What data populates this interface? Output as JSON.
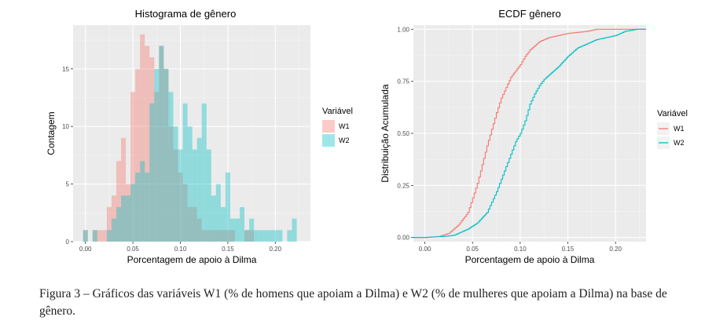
{
  "chart_data": [
    {
      "type": "bar",
      "title": "Histograma de gênero",
      "xlabel": "Porcentagem de apoio à Dilma",
      "ylabel": "Contagem",
      "xlim": [
        -0.013,
        0.237
      ],
      "ylim": [
        0,
        18.8
      ],
      "xticks": [
        0.0,
        0.05,
        0.1,
        0.15,
        0.2
      ],
      "xtick_labels": [
        "0.00",
        "0.05",
        "0.10",
        "0.15",
        "0.20"
      ],
      "yticks": [
        0,
        5,
        10,
        15
      ],
      "ytick_labels": [
        "0",
        "5",
        "10",
        "15"
      ],
      "bin_width": 0.005,
      "legend": {
        "title": "Variável",
        "position": "right",
        "entries": [
          "W1",
          "W2"
        ]
      },
      "series": [
        {
          "name": "W1",
          "color": "#F8766D",
          "bins": [
            [
              0.0,
              1
            ],
            [
              0.01,
              1
            ],
            [
              0.015,
              1
            ],
            [
              0.02,
              1
            ],
            [
              0.025,
              3
            ],
            [
              0.03,
              4
            ],
            [
              0.035,
              7
            ],
            [
              0.04,
              9
            ],
            [
              0.045,
              5
            ],
            [
              0.05,
              13
            ],
            [
              0.055,
              15
            ],
            [
              0.06,
              18
            ],
            [
              0.065,
              17
            ],
            [
              0.07,
              16
            ],
            [
              0.075,
              13
            ],
            [
              0.08,
              17
            ],
            [
              0.085,
              15
            ],
            [
              0.09,
              10
            ],
            [
              0.095,
              8
            ],
            [
              0.1,
              6
            ],
            [
              0.105,
              5
            ],
            [
              0.11,
              3
            ],
            [
              0.115,
              3
            ],
            [
              0.12,
              2
            ],
            [
              0.125,
              1
            ],
            [
              0.13,
              1
            ],
            [
              0.135,
              1
            ],
            [
              0.14,
              1
            ],
            [
              0.145,
              1
            ],
            [
              0.15,
              1
            ],
            [
              0.155,
              1
            ],
            [
              0.17,
              1
            ],
            [
              0.175,
              1
            ]
          ]
        },
        {
          "name": "W2",
          "color": "#00BFC4",
          "bins": [
            [
              0.0,
              1
            ],
            [
              0.01,
              1
            ],
            [
              0.015,
              0
            ],
            [
              0.025,
              1
            ],
            [
              0.03,
              2
            ],
            [
              0.035,
              3
            ],
            [
              0.04,
              4
            ],
            [
              0.045,
              4
            ],
            [
              0.05,
              5
            ],
            [
              0.055,
              6
            ],
            [
              0.06,
              7
            ],
            [
              0.065,
              6
            ],
            [
              0.07,
              12
            ],
            [
              0.075,
              15
            ],
            [
              0.08,
              17
            ],
            [
              0.085,
              15
            ],
            [
              0.09,
              13
            ],
            [
              0.095,
              10
            ],
            [
              0.1,
              8
            ],
            [
              0.105,
              12
            ],
            [
              0.11,
              10
            ],
            [
              0.115,
              8
            ],
            [
              0.12,
              9
            ],
            [
              0.125,
              12
            ],
            [
              0.13,
              8
            ],
            [
              0.135,
              4
            ],
            [
              0.14,
              5
            ],
            [
              0.145,
              3
            ],
            [
              0.15,
              6
            ],
            [
              0.155,
              2
            ],
            [
              0.16,
              2
            ],
            [
              0.165,
              3
            ],
            [
              0.17,
              1
            ],
            [
              0.175,
              2
            ],
            [
              0.18,
              1
            ],
            [
              0.185,
              1
            ],
            [
              0.19,
              1
            ],
            [
              0.195,
              1
            ],
            [
              0.2,
              1
            ],
            [
              0.205,
              1
            ],
            [
              0.215,
              1
            ],
            [
              0.22,
              2
            ]
          ]
        }
      ]
    },
    {
      "type": "line",
      "title": "ECDF gênero",
      "xlabel": "Porcentagem de apoio à Dilma",
      "ylabel": "Distribuição Acumulada",
      "xlim": [
        -0.012,
        0.232
      ],
      "ylim": [
        -0.02,
        1.02
      ],
      "xticks": [
        0.0,
        0.05,
        0.1,
        0.15,
        0.2
      ],
      "xtick_labels": [
        "0.00",
        "0.05",
        "0.10",
        "0.15",
        "0.20"
      ],
      "yticks": [
        0.0,
        0.25,
        0.5,
        0.75,
        1.0
      ],
      "ytick_labels": [
        "0.00",
        "0.25",
        "0.50",
        "0.75",
        "1.00"
      ],
      "legend": {
        "title": "Variável",
        "position": "right",
        "entries": [
          "W1",
          "W2"
        ]
      },
      "series": [
        {
          "name": "W1",
          "color": "#F8766D",
          "points": [
            [
              -0.012,
              0.0
            ],
            [
              0.0,
              0.0
            ],
            [
              0.015,
              0.005
            ],
            [
              0.025,
              0.02
            ],
            [
              0.03,
              0.04
            ],
            [
              0.035,
              0.06
            ],
            [
              0.04,
              0.09
            ],
            [
              0.045,
              0.12
            ],
            [
              0.05,
              0.19
            ],
            [
              0.055,
              0.26
            ],
            [
              0.06,
              0.35
            ],
            [
              0.065,
              0.44
            ],
            [
              0.07,
              0.52
            ],
            [
              0.075,
              0.6
            ],
            [
              0.08,
              0.67
            ],
            [
              0.085,
              0.72
            ],
            [
              0.09,
              0.77
            ],
            [
              0.095,
              0.8
            ],
            [
              0.1,
              0.83
            ],
            [
              0.105,
              0.87
            ],
            [
              0.11,
              0.9
            ],
            [
              0.12,
              0.94
            ],
            [
              0.13,
              0.96
            ],
            [
              0.14,
              0.97
            ],
            [
              0.15,
              0.98
            ],
            [
              0.17,
              0.99
            ],
            [
              0.18,
              1.0
            ],
            [
              0.232,
              1.0
            ]
          ]
        },
        {
          "name": "W2",
          "color": "#00BFC4",
          "points": [
            [
              -0.012,
              0.0
            ],
            [
              0.0,
              0.0
            ],
            [
              0.01,
              0.003
            ],
            [
              0.02,
              0.005
            ],
            [
              0.03,
              0.01
            ],
            [
              0.035,
              0.02
            ],
            [
              0.045,
              0.04
            ],
            [
              0.055,
              0.07
            ],
            [
              0.065,
              0.12
            ],
            [
              0.07,
              0.17
            ],
            [
              0.075,
              0.22
            ],
            [
              0.08,
              0.28
            ],
            [
              0.085,
              0.34
            ],
            [
              0.09,
              0.4
            ],
            [
              0.095,
              0.46
            ],
            [
              0.1,
              0.5
            ],
            [
              0.105,
              0.56
            ],
            [
              0.11,
              0.64
            ],
            [
              0.115,
              0.69
            ],
            [
              0.12,
              0.73
            ],
            [
              0.125,
              0.76
            ],
            [
              0.13,
              0.78
            ],
            [
              0.14,
              0.82
            ],
            [
              0.15,
              0.87
            ],
            [
              0.16,
              0.91
            ],
            [
              0.17,
              0.93
            ],
            [
              0.18,
              0.95
            ],
            [
              0.2,
              0.97
            ],
            [
              0.21,
              0.99
            ],
            [
              0.222,
              1.0
            ],
            [
              0.232,
              1.0
            ]
          ]
        }
      ]
    }
  ],
  "caption": "Figura 3 – Gráficos das variáveis W1 (% de homens que apoiam a Dilma) e W2 (% de mulheres que apoiam a Dilma) na base de gênero."
}
